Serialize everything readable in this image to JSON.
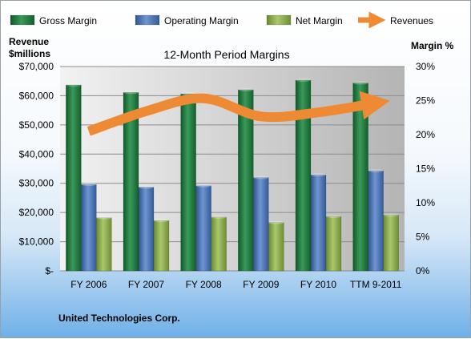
{
  "chart_data": {
    "type": "bar",
    "title": "12-Month Period Margins",
    "categories": [
      "FY 2006",
      "FY 2007",
      "FY 2008",
      "FY 2009",
      "FY 2010",
      "TTM 9-2011"
    ],
    "y_left_label_line1": "Revenue",
    "y_left_label_line2": "$millions",
    "y_right_label": "Margin %",
    "y_left_ticks": [
      "$-",
      "$10,000",
      "$20,000",
      "$30,000",
      "$40,000",
      "$50,000",
      "$60,000",
      "$70,000"
    ],
    "y_right_ticks": [
      "0%",
      "5%",
      "10%",
      "15%",
      "20%",
      "25%",
      "30%"
    ],
    "y_left_lim": [
      0,
      70000
    ],
    "y_right_lim": [
      0,
      30
    ],
    "grid": true,
    "legend_position": "top",
    "series": [
      {
        "name": "Gross Margin",
        "type": "bar",
        "axis": "right",
        "color": "#1e7a3c",
        "values": [
          27.3,
          26.2,
          26.0,
          26.6,
          28.0,
          27.6
        ]
      },
      {
        "name": "Operating Margin",
        "type": "bar",
        "axis": "right",
        "color": "#4a74b8",
        "values": [
          12.7,
          12.3,
          12.5,
          13.7,
          14.1,
          14.7
        ]
      },
      {
        "name": "Net Margin",
        "type": "bar",
        "axis": "right",
        "color": "#8fb050",
        "values": [
          7.8,
          7.4,
          7.9,
          7.1,
          8.0,
          8.2
        ]
      },
      {
        "name": "Revenues",
        "type": "line",
        "axis": "left",
        "color": "#ee8a33",
        "values": [
          47800,
          54700,
          59100,
          52900,
          54300,
          57500
        ]
      }
    ]
  },
  "footer_text": "United Technologies Corp."
}
